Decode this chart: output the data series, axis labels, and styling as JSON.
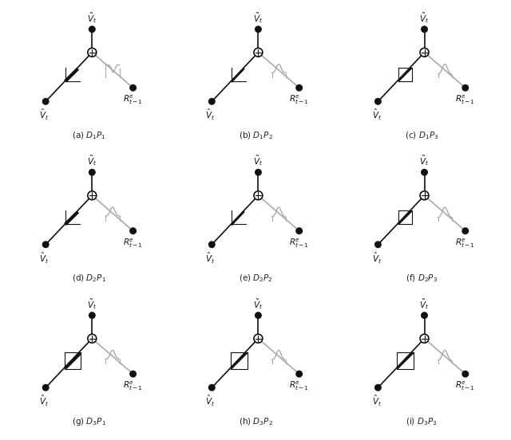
{
  "title": "",
  "figsize": [
    6.4,
    5.52
  ],
  "dpi": 100,
  "background": "#ffffff",
  "subfig_labels": [
    "(a) $D_1P_1$",
    "(b) $D_1P_2$",
    "(c) $D_1P_3$",
    "(d) $D_2P_1$",
    "(e) $D_2P_2$",
    "(f) $D_2P_3$",
    "(g) $D_3P_1$",
    "(h) $D_3P_2$",
    "(i) $D_3P_3$"
  ],
  "node_top_label": "$\\tilde{V}_t$",
  "node_left_label": "$\\hat{V}_t$",
  "node_right_label": "$R^e_{t-1}$",
  "text_color": "#222222",
  "node_color": "#111111",
  "line_dark": "#111111",
  "line_light": "#aaaaaa",
  "plus_circle_color": "#111111",
  "label_fontsize": 7.5
}
